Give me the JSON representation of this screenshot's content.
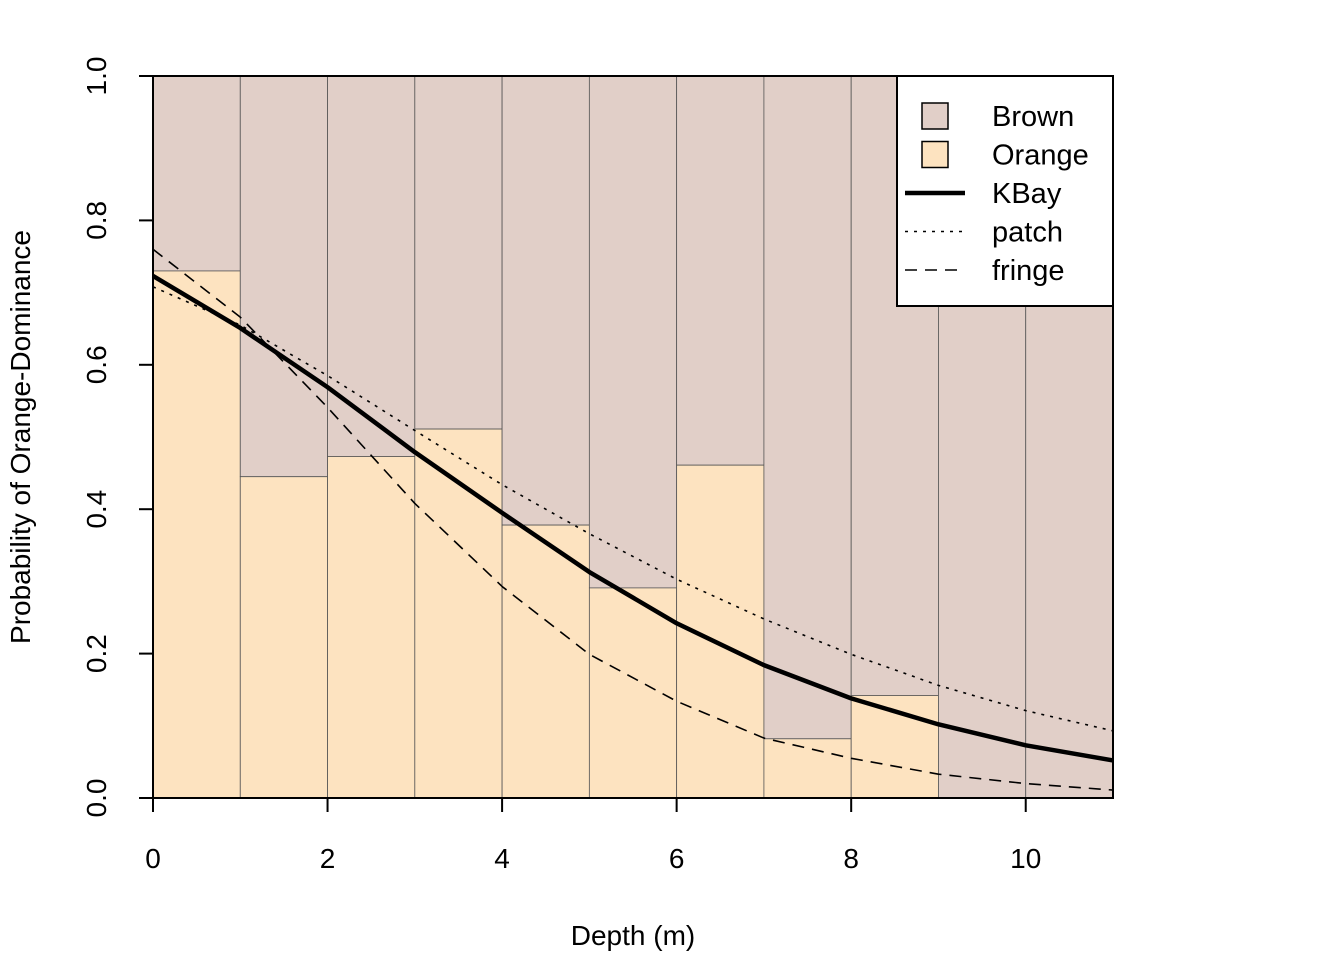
{
  "chart_data": {
    "type": "bar",
    "stacked": true,
    "title": "",
    "xlabel": "Depth (m)",
    "ylabel": "Probability of Orange-Dominance",
    "xlim": [
      0,
      11
    ],
    "ylim": [
      0,
      1
    ],
    "x_ticks": [
      "0",
      "2",
      "4",
      "6",
      "8",
      "10"
    ],
    "x_tick_values": [
      0,
      2,
      4,
      6,
      8,
      10
    ],
    "y_ticks": [
      "0.0",
      "0.2",
      "0.4",
      "0.6",
      "0.8",
      "1.0"
    ],
    "y_tick_values": [
      0,
      0.2,
      0.4,
      0.6,
      0.8,
      1.0
    ],
    "grid": false,
    "legend_position": "top-right",
    "bins": [
      {
        "x0": 0,
        "x1": 1,
        "orange": 0.73
      },
      {
        "x0": 1,
        "x1": 2,
        "orange": 0.445
      },
      {
        "x0": 2,
        "x1": 3,
        "orange": 0.473
      },
      {
        "x0": 3,
        "x1": 4,
        "orange": 0.511
      },
      {
        "x0": 4,
        "x1": 5,
        "orange": 0.378
      },
      {
        "x0": 5,
        "x1": 6,
        "orange": 0.291
      },
      {
        "x0": 6,
        "x1": 7,
        "orange": 0.461
      },
      {
        "x0": 7,
        "x1": 8,
        "orange": 0.082
      },
      {
        "x0": 8,
        "x1": 9,
        "orange": 0.142
      },
      {
        "x0": 9,
        "x1": 10,
        "orange": 0.0
      },
      {
        "x0": 10,
        "x1": 11,
        "orange": 0.0
      }
    ],
    "bar_series": [
      {
        "name": "Brown",
        "color": "#e1cfc8"
      },
      {
        "name": "Orange",
        "color": "#fde3c0"
      }
    ],
    "curves": [
      {
        "name": "KBay",
        "style": "solid",
        "color": "#000000",
        "x": [
          0,
          1,
          2,
          3,
          4,
          5,
          6,
          7,
          8,
          9,
          10,
          11
        ],
        "y": [
          0.723,
          0.651,
          0.569,
          0.479,
          0.395,
          0.313,
          0.242,
          0.184,
          0.138,
          0.102,
          0.073,
          0.052
        ]
      },
      {
        "name": "patch",
        "style": "dotted",
        "color": "#000000",
        "x": [
          0,
          1,
          2,
          3,
          4,
          5,
          6,
          7,
          8,
          9,
          10,
          11
        ],
        "y": [
          0.708,
          0.655,
          0.585,
          0.509,
          0.434,
          0.366,
          0.303,
          0.248,
          0.199,
          0.156,
          0.121,
          0.093
        ]
      },
      {
        "name": "fringe",
        "style": "dashed",
        "color": "#000000",
        "x": [
          0,
          1,
          2,
          3,
          4,
          5,
          6,
          7,
          8,
          9,
          10,
          11
        ],
        "y": [
          0.76,
          0.666,
          0.541,
          0.408,
          0.293,
          0.199,
          0.134,
          0.083,
          0.055,
          0.033,
          0.02,
          0.011
        ]
      }
    ]
  }
}
